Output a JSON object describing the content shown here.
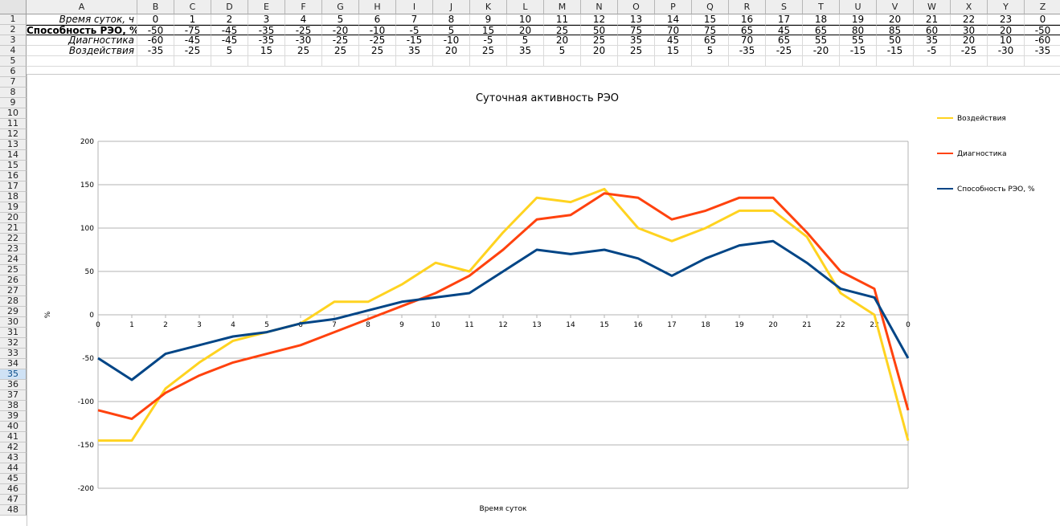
{
  "spreadsheet": {
    "columns": [
      "A",
      "B",
      "C",
      "D",
      "E",
      "F",
      "G",
      "H",
      "I",
      "J",
      "K",
      "L",
      "M",
      "N",
      "O",
      "P",
      "Q",
      "R",
      "S",
      "T",
      "U",
      "V",
      "W",
      "X",
      "Y",
      "Z"
    ],
    "row_numbers": [
      "1",
      "2",
      "3",
      "4",
      "5",
      "6",
      "7",
      "8",
      "9",
      "10",
      "11",
      "12",
      "13",
      "14",
      "15",
      "16",
      "17",
      "18",
      "19",
      "20",
      "21",
      "22",
      "23",
      "24",
      "25",
      "26",
      "27",
      "28",
      "29",
      "30",
      "31",
      "32",
      "33",
      "34",
      "35",
      "36",
      "37",
      "38",
      "39",
      "40",
      "41",
      "42",
      "43",
      "44",
      "45",
      "46",
      "47",
      "48"
    ],
    "selected_row": "35",
    "rows": [
      {
        "label": "Время суток, ч",
        "values": [
          "0",
          "1",
          "2",
          "3",
          "4",
          "5",
          "6",
          "7",
          "8",
          "9",
          "10",
          "11",
          "12",
          "13",
          "14",
          "15",
          "16",
          "17",
          "18",
          "19",
          "20",
          "21",
          "22",
          "23",
          "0"
        ]
      },
      {
        "label": "Способность РЭО, %",
        "values": [
          "-50",
          "-75",
          "-45",
          "-35",
          "-25",
          "-20",
          "-10",
          "-5",
          "5",
          "15",
          "20",
          "25",
          "50",
          "75",
          "70",
          "75",
          "65",
          "45",
          "65",
          "80",
          "85",
          "60",
          "30",
          "20",
          "-50"
        ]
      },
      {
        "label": "Диагностика",
        "values": [
          "-60",
          "-45",
          "-45",
          "-35",
          "-30",
          "-25",
          "-25",
          "-15",
          "-10",
          "-5",
          "5",
          "20",
          "25",
          "35",
          "45",
          "65",
          "70",
          "65",
          "55",
          "55",
          "50",
          "35",
          "20",
          "10",
          "-60"
        ]
      },
      {
        "label": "Воздействия",
        "values": [
          "-35",
          "-25",
          "5",
          "15",
          "25",
          "25",
          "25",
          "35",
          "20",
          "25",
          "35",
          "5",
          "20",
          "25",
          "15",
          "5",
          "-35",
          "-25",
          "-20",
          "-15",
          "-15",
          "-5",
          "-25",
          "-30",
          "-35"
        ]
      }
    ]
  },
  "chart_data": {
    "type": "line",
    "title": "Суточная активность РЭО",
    "xlabel": "Время суток",
    "ylabel": "%",
    "categories": [
      "0",
      "1",
      "2",
      "3",
      "4",
      "5",
      "6",
      "7",
      "8",
      "9",
      "10",
      "11",
      "12",
      "13",
      "14",
      "15",
      "16",
      "17",
      "18",
      "19",
      "20",
      "21",
      "22",
      "23",
      "0"
    ],
    "ylim": [
      -200,
      200
    ],
    "yticks": [
      "200",
      "150",
      "100",
      "50",
      "0",
      "-50",
      "-100",
      "-150",
      "-200"
    ],
    "ytick_values": [
      200,
      150,
      100,
      50,
      0,
      -50,
      -100,
      -150,
      -200
    ],
    "grid": true,
    "legend_position": "right",
    "series": [
      {
        "name": "Воздействия",
        "color": "#ffd320",
        "values": [
          -145,
          -145,
          -85,
          -55,
          -30,
          -20,
          -10,
          15,
          15,
          35,
          60,
          50,
          95,
          135,
          130,
          145,
          100,
          85,
          100,
          120,
          120,
          90,
          25,
          0,
          -145
        ]
      },
      {
        "name": "Диагностика",
        "color": "#ff420e",
        "values": [
          -110,
          -120,
          -90,
          -70,
          -55,
          -45,
          -35,
          -20,
          -5,
          10,
          25,
          45,
          75,
          110,
          115,
          140,
          135,
          110,
          120,
          135,
          135,
          95,
          50,
          30,
          -110
        ]
      },
      {
        "name": "Способность РЭО, %",
        "color": "#004586",
        "values": [
          -50,
          -75,
          -45,
          -35,
          -25,
          -20,
          -10,
          -5,
          5,
          15,
          20,
          25,
          50,
          75,
          70,
          75,
          65,
          45,
          65,
          80,
          85,
          60,
          30,
          20,
          -50
        ]
      }
    ]
  }
}
